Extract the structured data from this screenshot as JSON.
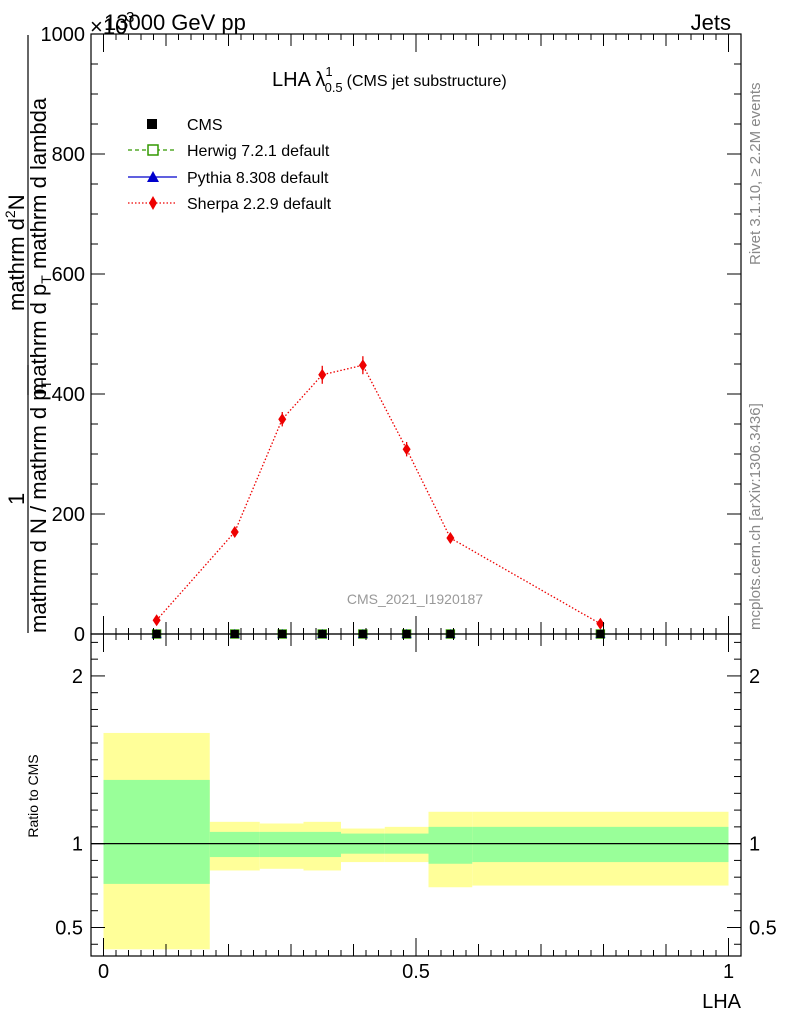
{
  "header": {
    "left": "13000 GeV pp",
    "right": "Jets",
    "exponent_prefix": "×10",
    "exponent": "3"
  },
  "side_labels": {
    "rivet": "Rivet 3.1.10, ≥ 2.2M events",
    "mcplots": "mcplots.cern.ch [arXiv:1306.3436]"
  },
  "watermark": "CMS_2021_I1920187",
  "colors": {
    "herwig": "#339900",
    "pythia": "#0000cc",
    "sherpa": "#ee0000",
    "band_inner": "#99ff99",
    "band_outer": "#ffff99"
  },
  "chart_data": [
    {
      "type": "line",
      "title": "LHA λ",
      "title_sup": "1",
      "title_sub": "0.5",
      "title_note": "(CMS jet substructure)",
      "ylabel_fraction_numerator": "1",
      "ylabel_denominator": "mathrm d N / mathrm d p",
      "ylabel_denominator_sub": "T",
      "ylabel_main": "mathrm d",
      "ylabel_main_sup": "2",
      "ylabel_main_rest": "N",
      "ylabel_main_denominator": "mathrm d p",
      "ylabel_main_denominator_sub": "T",
      "ylabel_main_denominator_rest": " mathrm d lambda",
      "ylim": [
        0,
        1000
      ],
      "yticks": [
        0,
        200,
        400,
        600,
        800,
        1000
      ],
      "ytick_labels": [
        "0",
        "200",
        "400",
        "600",
        "800",
        "1000"
      ],
      "xlim": [
        -0.02,
        1.02
      ],
      "legend": {
        "placement": "top-left",
        "entries": [
          "CMS",
          "Herwig 7.2.1 default",
          "Pythia 8.308 default",
          "Sherpa 2.2.9 default"
        ]
      },
      "series": [
        {
          "name": "CMS",
          "x": [
            0.085,
            0.21,
            0.286,
            0.35,
            0.415,
            0.485,
            0.555,
            0.795
          ],
          "y": [
            0,
            0,
            0,
            0,
            0,
            0,
            0,
            0
          ]
        },
        {
          "name": "Herwig 7.2.1 default",
          "x": [
            0.085,
            0.21,
            0.286,
            0.35,
            0.415,
            0.485,
            0.555,
            0.795
          ],
          "y": [
            0,
            0,
            0,
            0,
            0,
            0,
            0,
            0
          ]
        },
        {
          "name": "Pythia 8.308 default",
          "x": [
            0.085,
            0.21,
            0.286,
            0.35,
            0.415,
            0.485,
            0.555,
            0.795
          ],
          "y": [
            0,
            0,
            0,
            0,
            0,
            0,
            0,
            0
          ]
        },
        {
          "name": "Sherpa 2.2.9 default",
          "x": [
            0.085,
            0.21,
            0.286,
            0.35,
            0.415,
            0.485,
            0.555,
            0.795
          ],
          "y": [
            23,
            170,
            358,
            432,
            448,
            308,
            160,
            17
          ],
          "yerr": [
            5,
            8,
            12,
            15,
            15,
            12,
            8,
            5
          ]
        }
      ]
    },
    {
      "type": "area",
      "ylabel": "Ratio to CMS",
      "xlabel": "LHA",
      "ylim": [
        0.33,
        2.25
      ],
      "yticks": [
        0.5,
        1,
        2
      ],
      "ytick_labels": [
        "0.5",
        "1",
        "2"
      ],
      "xticks": [
        0,
        0.5,
        1
      ],
      "xtick_labels": [
        "0",
        "0.5",
        "1"
      ],
      "reference_line": 1,
      "bins": [
        {
          "x0": 0.0,
          "x1": 0.17,
          "inner": [
            0.76,
            1.38
          ],
          "outer": [
            0.37,
            1.66
          ]
        },
        {
          "x0": 0.17,
          "x1": 0.25,
          "inner": [
            0.92,
            1.07
          ],
          "outer": [
            0.84,
            1.13
          ]
        },
        {
          "x0": 0.25,
          "x1": 0.32,
          "inner": [
            0.92,
            1.07
          ],
          "outer": [
            0.85,
            1.12
          ]
        },
        {
          "x0": 0.32,
          "x1": 0.38,
          "inner": [
            0.92,
            1.07
          ],
          "outer": [
            0.84,
            1.13
          ]
        },
        {
          "x0": 0.38,
          "x1": 0.45,
          "inner": [
            0.94,
            1.06
          ],
          "outer": [
            0.89,
            1.09
          ]
        },
        {
          "x0": 0.45,
          "x1": 0.52,
          "inner": [
            0.94,
            1.06
          ],
          "outer": [
            0.89,
            1.1
          ]
        },
        {
          "x0": 0.52,
          "x1": 0.59,
          "inner": [
            0.88,
            1.1
          ],
          "outer": [
            0.74,
            1.19
          ]
        },
        {
          "x0": 0.59,
          "x1": 1.0,
          "inner": [
            0.89,
            1.1
          ],
          "outer": [
            0.75,
            1.19
          ]
        }
      ]
    }
  ]
}
